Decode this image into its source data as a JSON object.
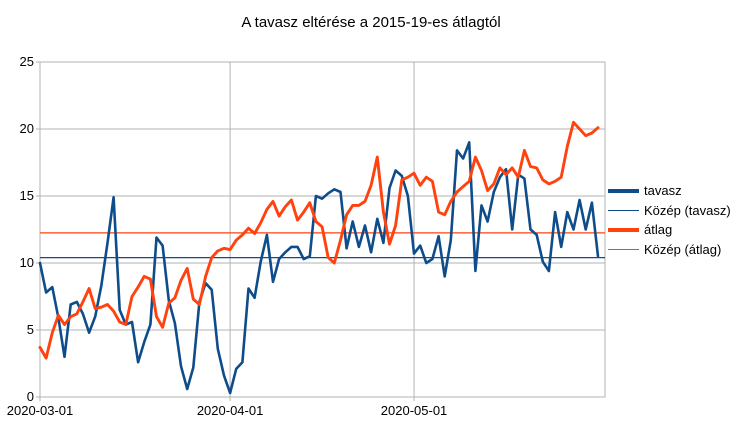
{
  "title": "A tavasz eltérése a 2015-19-es átlagtól",
  "colors": {
    "series_tavasz": "#0e4c8a",
    "series_atlag": "#ff420e",
    "grid": "#b3b3b3",
    "text": "#000000",
    "background": "#ffffff"
  },
  "chart_data": {
    "type": "line",
    "title": "A tavasz eltérése a 2015-19-es átlagtól",
    "x_start_date": "2020-03-01",
    "x_end_date": "2020-05-31",
    "x_step_days": 1,
    "x_tick_labels": [
      "2020-03-01",
      "2020-04-01",
      "2020-05-01"
    ],
    "x_tick_days": [
      0,
      31,
      61
    ],
    "y_ticks": [
      0,
      5,
      10,
      15,
      20,
      25
    ],
    "ylim": [
      0,
      25
    ],
    "grid": true,
    "legend_position": "right",
    "legend": [
      "tavasz",
      "Közép (tavasz)",
      "átlag",
      "Közép (átlag)"
    ],
    "series": [
      {
        "name": "tavasz",
        "kind": "line",
        "color": "#0e4c8a",
        "stroke_width": 2.6,
        "values": [
          10,
          7.8,
          8.2,
          5.9,
          3,
          6.9,
          7.1,
          6.2,
          4.8,
          6,
          8.3,
          11.5,
          14.9,
          6.5,
          5.4,
          5.6,
          2.6,
          4.1,
          5.4,
          11.9,
          11.3,
          7.2,
          5.5,
          2.3,
          0.6,
          2.2,
          7.1,
          8.5,
          8,
          3.6,
          1.6,
          0.3,
          2.1,
          2.6,
          8.1,
          7.4,
          10.1,
          12.1,
          8.6,
          10.3,
          10.8,
          11.2,
          11.2,
          10.3,
          10.5,
          15,
          14.8,
          15.2,
          15.5,
          15.3,
          11.1,
          13.1,
          11.2,
          12.8,
          10.8,
          13.3,
          11.5,
          15.6,
          16.9,
          16.5,
          15,
          10.7,
          11.3,
          10,
          10.3,
          12,
          9,
          11.7,
          18.4,
          17.8,
          19,
          9.4,
          14.3,
          13.1,
          15.3,
          16.4,
          17,
          12.5,
          16.6,
          16.3,
          12.5,
          12.1,
          10.1,
          9.4,
          13.8,
          11.2,
          13.8,
          12.5,
          14.7,
          12.5,
          14.5,
          10.5
        ]
      },
      {
        "name": "átlag",
        "kind": "line",
        "color": "#ff420e",
        "stroke_width": 2.9,
        "values": [
          3.7,
          2.9,
          4.8,
          6.1,
          5.4,
          6,
          6.2,
          7.1,
          8.1,
          6.6,
          6.7,
          6.9,
          6.4,
          5.6,
          5.4,
          7.5,
          8.2,
          9,
          8.8,
          6,
          5.2,
          7,
          7.4,
          8.7,
          9.6,
          7.3,
          6.9,
          9,
          10.4,
          10.9,
          11.1,
          11,
          11.7,
          12.1,
          12.6,
          12.2,
          13,
          14,
          14.6,
          13.5,
          14.2,
          14.7,
          13.2,
          13.8,
          14.5,
          13.1,
          12.7,
          10.4,
          10,
          11.7,
          13.6,
          14.3,
          14.3,
          14.6,
          15.8,
          17.9,
          13.8,
          11.4,
          12.8,
          16.2,
          16.4,
          16.7,
          15.8,
          16.4,
          16.1,
          13.8,
          13.6,
          14.6,
          15.3,
          15.7,
          16.1,
          17.9,
          16.9,
          15.4,
          15.9,
          17.1,
          16.6,
          17.1,
          16.4,
          18.4,
          17.2,
          17.1,
          16.2,
          15.9,
          16.1,
          16.4,
          18.7,
          20.5,
          20,
          19.5,
          19.7,
          20.1
        ]
      },
      {
        "name": "Közép (tavasz)",
        "kind": "hline",
        "color": "#0e4c8a",
        "stroke_width": 1.3,
        "value": 10.4
      },
      {
        "name": "Közép (átlag)",
        "kind": "hline",
        "color": "#ff420e",
        "stroke_width": 1.3,
        "value": 12.25
      }
    ]
  }
}
